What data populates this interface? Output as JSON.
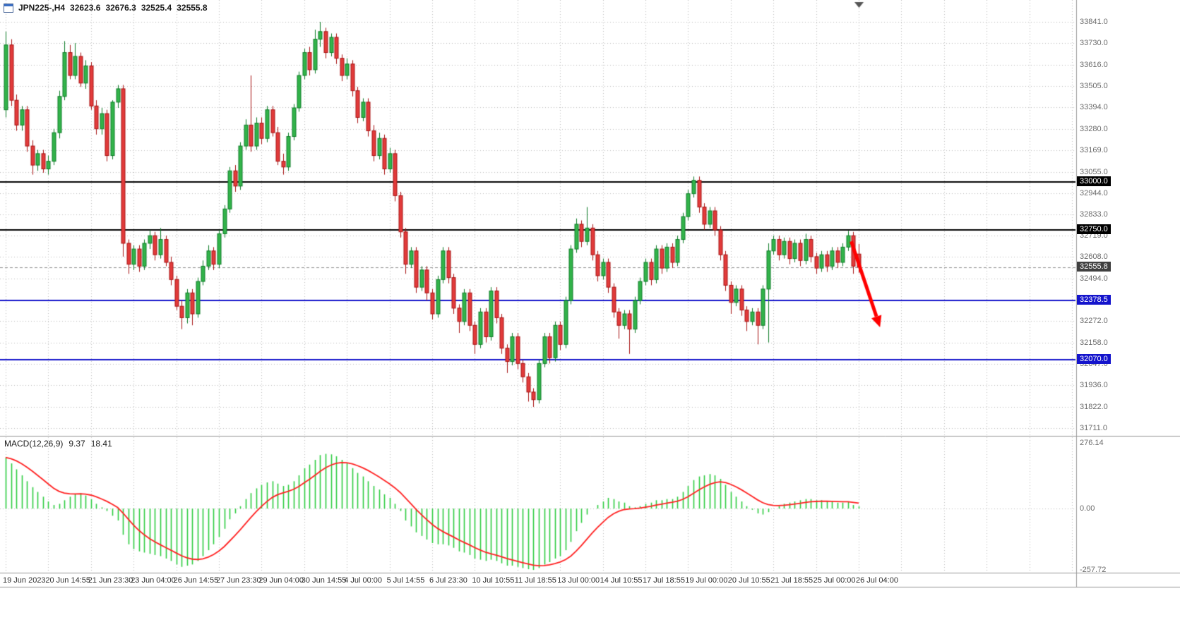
{
  "window": {
    "symbol_period": "JPN225-,H4",
    "open": "32623.6",
    "high": "32676.3",
    "low": "32525.4",
    "close": "32555.8"
  },
  "icons": {
    "title_icon": "chart-window-icon",
    "shift_marker": "chart-shift-triangle-icon"
  },
  "colors": {
    "bull_fill": "#33b44a",
    "bull_border": "#0e7d28",
    "bear_fill": "#e23b3b",
    "bear_border": "#a81414",
    "macd_hist": "#2ecc40",
    "macd_signal": "#ff2222",
    "grid": "#bdbdbd",
    "axis_text": "#6b6b6b",
    "black_level": "#000000",
    "blue_level": "#1414cc",
    "arrow": "#ff0000",
    "bid_tag": "#404040"
  },
  "chart_data": {
    "type": "candlestick",
    "symbol": "JPN225-",
    "timeframe": "H4",
    "indicator": "MACD",
    "price_axis": {
      "max": 33841.0,
      "min": 31711.0,
      "ticks": [
        "33841.0",
        "33730.0",
        "33616.0",
        "33505.0",
        "33394.0",
        "33280.0",
        "33169.0",
        "33055.0",
        "32944.0",
        "32833.0",
        "32719.0",
        "32608.0",
        "32494.0",
        "32383.0",
        "32272.0",
        "32158.0",
        "32047.0",
        "31936.0",
        "31822.0",
        "31711.0"
      ]
    },
    "time_axis": {
      "labels": [
        "19 Jun 2023",
        "20 Jun 14:55",
        "21 Jun 23:30",
        "23 Jun 04:00",
        "26 Jun 14:55",
        "27 Jun 23:30",
        "29 Jun 04:00",
        "30 Jun 14:55",
        "4 Jul 00:00",
        "5 Jul 14:55",
        "6 Jul 23:30",
        "10 Jul 10:55",
        "11 Jul 18:55",
        "13 Jul 00:00",
        "14 Jul 10:55",
        "17 Jul 18:55",
        "19 Jul 00:00",
        "20 Jul 10:55",
        "21 Jul 18:55",
        "25 Jul 00:00",
        "26 Jul 04:00"
      ]
    },
    "hlines": [
      {
        "price": 33000.0,
        "label": "33000.0",
        "color": "#000000"
      },
      {
        "price": 32750.0,
        "label": "32750.0",
        "color": "#000000"
      },
      {
        "price": 32378.5,
        "label": "32378.5",
        "color": "#1414cc"
      },
      {
        "price": 32070.0,
        "label": "32070.0",
        "color": "#1414cc"
      }
    ],
    "bid": {
      "price": 32555.8,
      "label": "32555.8",
      "tag_color": "#404040"
    },
    "arrow": {
      "from_bar": 158.6,
      "from_price": 32690,
      "to_bar": 164,
      "to_price": 32240,
      "color": "#ff0000"
    },
    "candles": [
      [
        33380,
        33790,
        33340,
        33720
      ],
      [
        33720,
        33750,
        33400,
        33430
      ],
      [
        33430,
        33460,
        33270,
        33300
      ],
      [
        33300,
        33400,
        33270,
        33380
      ],
      [
        33380,
        33400,
        33160,
        33190
      ],
      [
        33190,
        33220,
        33040,
        33090
      ],
      [
        33090,
        33170,
        33060,
        33150
      ],
      [
        33150,
        33170,
        33050,
        33070
      ],
      [
        33070,
        33140,
        33040,
        33110
      ],
      [
        33110,
        33280,
        33090,
        33260
      ],
      [
        33260,
        33480,
        33230,
        33450
      ],
      [
        33450,
        33740,
        33430,
        33680
      ],
      [
        33680,
        33720,
        33540,
        33560
      ],
      [
        33560,
        33730,
        33540,
        33660
      ],
      [
        33660,
        33680,
        33500,
        33520
      ],
      [
        33520,
        33640,
        33490,
        33610
      ],
      [
        33610,
        33630,
        33380,
        33400
      ],
      [
        33400,
        33430,
        33250,
        33280
      ],
      [
        33280,
        33390,
        33250,
        33360
      ],
      [
        33360,
        33380,
        33110,
        33140
      ],
      [
        33140,
        33430,
        33120,
        33420
      ],
      [
        33420,
        33510,
        33390,
        33490
      ],
      [
        33490,
        33510,
        32610,
        32680
      ],
      [
        32680,
        32700,
        32520,
        32570
      ],
      [
        32570,
        32670,
        32540,
        32650
      ],
      [
        32650,
        32670,
        32530,
        32560
      ],
      [
        32560,
        32700,
        32540,
        32680
      ],
      [
        32680,
        32750,
        32650,
        32720
      ],
      [
        32720,
        32740,
        32590,
        32620
      ],
      [
        32620,
        32760,
        32600,
        32700
      ],
      [
        32700,
        32720,
        32560,
        32580
      ],
      [
        32580,
        32610,
        32460,
        32490
      ],
      [
        32490,
        32510,
        32330,
        32350
      ],
      [
        32350,
        32380,
        32230,
        32290
      ],
      [
        32290,
        32440,
        32260,
        32420
      ],
      [
        32420,
        32440,
        32250,
        32310
      ],
      [
        32310,
        32500,
        32290,
        32480
      ],
      [
        32480,
        32590,
        32460,
        32560
      ],
      [
        32560,
        32670,
        32540,
        32640
      ],
      [
        32640,
        32660,
        32540,
        32570
      ],
      [
        32570,
        32750,
        32550,
        32730
      ],
      [
        32730,
        32880,
        32710,
        32860
      ],
      [
        32860,
        33080,
        32840,
        33060
      ],
      [
        33060,
        33090,
        32950,
        32980
      ],
      [
        32980,
        33210,
        32960,
        33190
      ],
      [
        33190,
        33330,
        33170,
        33300
      ],
      [
        33300,
        33560,
        33160,
        33190
      ],
      [
        33190,
        33340,
        33170,
        33310
      ],
      [
        33310,
        33340,
        33200,
        33230
      ],
      [
        33230,
        33400,
        33210,
        33380
      ],
      [
        33380,
        33400,
        33240,
        33260
      ],
      [
        33260,
        33290,
        33090,
        33110
      ],
      [
        33110,
        33150,
        33040,
        33080
      ],
      [
        33080,
        33260,
        33060,
        33240
      ],
      [
        33240,
        33410,
        33220,
        33390
      ],
      [
        33390,
        33580,
        33370,
        33560
      ],
      [
        33560,
        33700,
        33540,
        33680
      ],
      [
        33680,
        33710,
        33560,
        33590
      ],
      [
        33590,
        33800,
        33570,
        33750
      ],
      [
        33750,
        33841,
        33710,
        33790
      ],
      [
        33790,
        33810,
        33650,
        33680
      ],
      [
        33680,
        33780,
        33660,
        33760
      ],
      [
        33760,
        33780,
        33620,
        33650
      ],
      [
        33650,
        33670,
        33530,
        33560
      ],
      [
        33560,
        33650,
        33540,
        33620
      ],
      [
        33620,
        33640,
        33450,
        33480
      ],
      [
        33480,
        33500,
        33310,
        33340
      ],
      [
        33340,
        33440,
        33320,
        33420
      ],
      [
        33420,
        33440,
        33240,
        33270
      ],
      [
        33270,
        33300,
        33110,
        33140
      ],
      [
        33140,
        33260,
        33120,
        33230
      ],
      [
        33230,
        33250,
        33040,
        33070
      ],
      [
        33070,
        33180,
        33050,
        33150
      ],
      [
        33150,
        33170,
        32900,
        32930
      ],
      [
        32930,
        32950,
        32710,
        32740
      ],
      [
        32740,
        32760,
        32520,
        32570
      ],
      [
        32570,
        32660,
        32550,
        32640
      ],
      [
        32640,
        32660,
        32420,
        32450
      ],
      [
        32450,
        32560,
        32430,
        32540
      ],
      [
        32540,
        32560,
        32380,
        32420
      ],
      [
        32420,
        32440,
        32280,
        32310
      ],
      [
        32310,
        32510,
        32290,
        32490
      ],
      [
        32490,
        32660,
        32470,
        32640
      ],
      [
        32640,
        32660,
        32470,
        32500
      ],
      [
        32500,
        32520,
        32310,
        32340
      ],
      [
        32340,
        32360,
        32210,
        32270
      ],
      [
        32270,
        32440,
        32250,
        32420
      ],
      [
        32420,
        32440,
        32220,
        32250
      ],
      [
        32250,
        32270,
        32100,
        32150
      ],
      [
        32150,
        32340,
        32130,
        32320
      ],
      [
        32320,
        32340,
        32160,
        32190
      ],
      [
        32190,
        32450,
        32170,
        32430
      ],
      [
        32430,
        32450,
        32260,
        32290
      ],
      [
        32290,
        32310,
        32100,
        32130
      ],
      [
        32130,
        32150,
        32000,
        32060
      ],
      [
        32060,
        32210,
        32040,
        32190
      ],
      [
        32190,
        32210,
        32020,
        32050
      ],
      [
        32050,
        32070,
        31950,
        31980
      ],
      [
        31980,
        32000,
        31850,
        31900
      ],
      [
        31900,
        31920,
        31822,
        31860
      ],
      [
        31860,
        32070,
        31840,
        32050
      ],
      [
        32050,
        32210,
        32030,
        32190
      ],
      [
        32190,
        32210,
        32050,
        32080
      ],
      [
        32080,
        32270,
        32060,
        32250
      ],
      [
        32250,
        32270,
        32120,
        32150
      ],
      [
        32150,
        32400,
        32130,
        32380
      ],
      [
        32380,
        32670,
        32360,
        32650
      ],
      [
        32650,
        32810,
        32630,
        32780
      ],
      [
        32780,
        32800,
        32660,
        32690
      ],
      [
        32690,
        32870,
        32670,
        32760
      ],
      [
        32760,
        32780,
        32590,
        32620
      ],
      [
        32620,
        32640,
        32480,
        32510
      ],
      [
        32510,
        32600,
        32490,
        32580
      ],
      [
        32580,
        32600,
        32420,
        32450
      ],
      [
        32450,
        32470,
        32290,
        32320
      ],
      [
        32320,
        32340,
        32180,
        32250
      ],
      [
        32250,
        32330,
        32230,
        32310
      ],
      [
        32310,
        32330,
        32100,
        32230
      ],
      [
        32230,
        32400,
        32210,
        32380
      ],
      [
        32380,
        32500,
        32360,
        32480
      ],
      [
        32480,
        32600,
        32460,
        32580
      ],
      [
        32580,
        32600,
        32460,
        32490
      ],
      [
        32490,
        32670,
        32470,
        32650
      ],
      [
        32650,
        32670,
        32520,
        32550
      ],
      [
        32550,
        32680,
        32530,
        32660
      ],
      [
        32660,
        32680,
        32550,
        32580
      ],
      [
        32580,
        32720,
        32560,
        32700
      ],
      [
        32700,
        32840,
        32680,
        32820
      ],
      [
        32820,
        32960,
        32800,
        32940
      ],
      [
        32940,
        33030,
        32920,
        33010
      ],
      [
        33010,
        33030,
        32840,
        32870
      ],
      [
        32870,
        32890,
        32750,
        32780
      ],
      [
        32780,
        32870,
        32760,
        32850
      ],
      [
        32850,
        32870,
        32720,
        32750
      ],
      [
        32750,
        32770,
        32590,
        32620
      ],
      [
        32620,
        32640,
        32430,
        32460
      ],
      [
        32460,
        32480,
        32310,
        32370
      ],
      [
        32370,
        32460,
        32350,
        32440
      ],
      [
        32440,
        32460,
        32300,
        32330
      ],
      [
        32330,
        32350,
        32220,
        32270
      ],
      [
        32270,
        32340,
        32250,
        32320
      ],
      [
        32320,
        32340,
        32150,
        32250
      ],
      [
        32250,
        32460,
        32230,
        32440
      ],
      [
        32440,
        32680,
        32160,
        32640
      ],
      [
        32640,
        32720,
        32620,
        32700
      ],
      [
        32700,
        32720,
        32590,
        32620
      ],
      [
        32620,
        32710,
        32600,
        32690
      ],
      [
        32690,
        32710,
        32570,
        32600
      ],
      [
        32600,
        32700,
        32580,
        32680
      ],
      [
        32680,
        32700,
        32560,
        32590
      ],
      [
        32590,
        32730,
        32570,
        32700
      ],
      [
        32700,
        32720,
        32580,
        32610
      ],
      [
        32610,
        32630,
        32520,
        32550
      ],
      [
        32550,
        32640,
        32530,
        32620
      ],
      [
        32620,
        32640,
        32530,
        32560
      ],
      [
        32560,
        32660,
        32540,
        32640
      ],
      [
        32640,
        32660,
        32550,
        32580
      ],
      [
        32580,
        32680,
        32560,
        32660
      ],
      [
        32660,
        32745,
        32640,
        32720
      ],
      [
        32720,
        32740,
        32520,
        32560
      ],
      [
        32623.6,
        32676.3,
        32525.4,
        32555.8
      ]
    ],
    "macd": {
      "label": "MACD(12,26,9)",
      "main_value": "9.37",
      "signal_value": "18.41",
      "scale_labels": [
        "276.14",
        "0.00",
        "-257.72"
      ],
      "scale_max": 276.14,
      "scale_min": -257.72,
      "main": [
        215,
        190,
        165,
        140,
        115,
        90,
        70,
        50,
        30,
        15,
        20,
        35,
        50,
        60,
        65,
        55,
        40,
        20,
        5,
        -10,
        -30,
        -50,
        -110,
        -150,
        -170,
        -180,
        -185,
        -190,
        -195,
        -200,
        -210,
        -220,
        -235,
        -245,
        -240,
        -235,
        -220,
        -200,
        -175,
        -150,
        -120,
        -85,
        -45,
        -20,
        10,
        40,
        65,
        85,
        100,
        110,
        115,
        105,
        95,
        100,
        115,
        140,
        170,
        185,
        205,
        225,
        230,
        228,
        220,
        205,
        190,
        170,
        150,
        135,
        115,
        95,
        80,
        60,
        45,
        20,
        -10,
        -50,
        -75,
        -100,
        -115,
        -130,
        -145,
        -150,
        -150,
        -155,
        -165,
        -180,
        -185,
        -195,
        -210,
        -215,
        -220,
        -215,
        -220,
        -230,
        -240,
        -240,
        -245,
        -250,
        -255,
        -258,
        -250,
        -235,
        -225,
        -210,
        -200,
        -175,
        -140,
        -95,
        -60,
        -25,
        0,
        15,
        30,
        45,
        40,
        30,
        25,
        10,
        5,
        10,
        20,
        25,
        35,
        35,
        40,
        40,
        50,
        70,
        95,
        120,
        135,
        140,
        145,
        140,
        125,
        100,
        70,
        50,
        30,
        10,
        -5,
        -20,
        -25,
        -15,
        0,
        10,
        20,
        25,
        30,
        35,
        40,
        40,
        35,
        35,
        30,
        30,
        25,
        25,
        30,
        15,
        9.37
      ]
    }
  }
}
